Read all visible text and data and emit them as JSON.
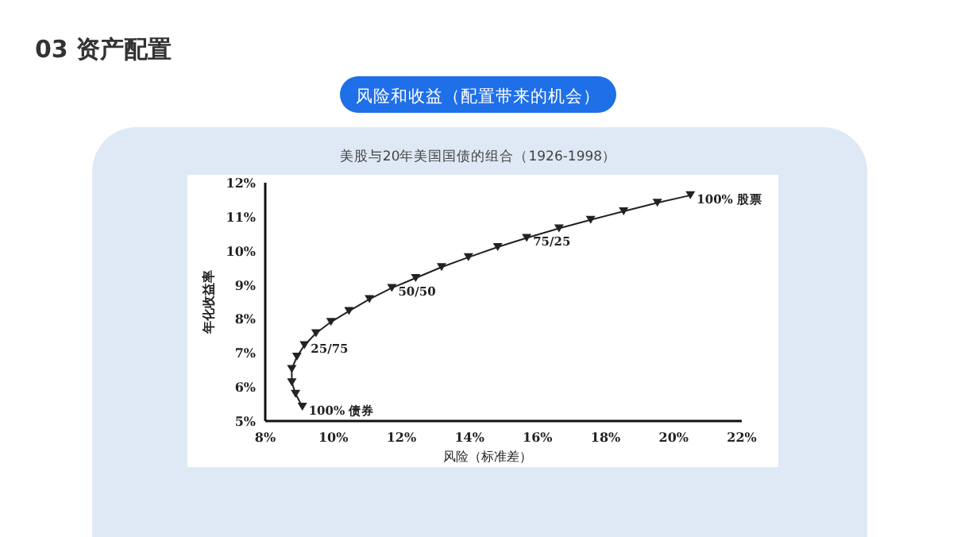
{
  "chart_data": {
    "type": "line",
    "title": "03 资产配置",
    "subtitle": "风险和收益（配置带来的机会）",
    "xlabel": "风险（标准差）",
    "ylabel": "年化收益率",
    "x": [
      9.09,
      8.89,
      8.78,
      8.78,
      8.93,
      9.15,
      9.49,
      9.93,
      10.46,
      11.06,
      11.72,
      12.42,
      13.18,
      13.97,
      14.83,
      15.68,
      16.63,
      17.56,
      18.53,
      19.52,
      20.49
    ],
    "series": [
      {
        "color": "#222222",
        "values": [
          5.42,
          5.8,
          6.14,
          6.53,
          6.89,
          7.23,
          7.58,
          7.91,
          8.23,
          8.58,
          8.91,
          9.2,
          9.52,
          9.81,
          10.11,
          10.38,
          10.66,
          10.91,
          11.16,
          11.41,
          11.63
        ]
      }
    ],
    "xlim": [
      8,
      22
    ],
    "ylim": [
      5,
      12
    ],
    "xticks": [
      {
        "value": 8,
        "label": "8%"
      },
      {
        "value": 10,
        "label": "10%"
      },
      {
        "value": 12,
        "label": "12%"
      },
      {
        "value": 14,
        "label": "14%"
      },
      {
        "value": 16,
        "label": "16%"
      },
      {
        "value": 18,
        "label": "18%"
      },
      {
        "value": 20,
        "label": "20%"
      },
      {
        "value": 22,
        "label": "22%"
      }
    ],
    "yticks": [
      {
        "value": 5,
        "label": "5%"
      },
      {
        "value": 6,
        "label": "6%"
      },
      {
        "value": 7,
        "label": "7%"
      },
      {
        "value": 8,
        "label": "8%"
      },
      {
        "value": 9,
        "label": "9%"
      },
      {
        "value": 10,
        "label": "10%"
      },
      {
        "value": 11,
        "label": "11%"
      },
      {
        "value": 12,
        "label": "12%"
      }
    ],
    "marker": "triangle",
    "line_style": "solid",
    "grid": false,
    "annotations": [
      "美股与20年美国国债的组合（1926-1998）",
      {
        "text": "100% 债券",
        "x": 9.09,
        "y": 5.42
      },
      {
        "text": "25/75",
        "x": 9.15,
        "y": 7.23
      },
      {
        "text": "50/50",
        "x": 11.72,
        "y": 8.91
      },
      {
        "text": "75/25",
        "x": 15.68,
        "y": 10.38
      },
      {
        "text": "100% 股票",
        "x": 20.49,
        "y": 11.63
      }
    ]
  }
}
